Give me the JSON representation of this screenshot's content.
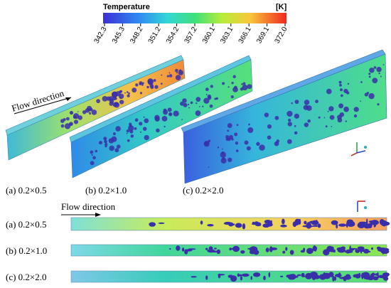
{
  "colorbar": {
    "title": "Temperature",
    "unit": "[K]",
    "ticks": [
      "342.3",
      "345.3",
      "348.2",
      "351.2",
      "354.2",
      "357.2",
      "360.1",
      "363.1",
      "366.1",
      "369.1",
      "372.0"
    ]
  },
  "iso_view": {
    "flow_label": "Flow direction",
    "panels": [
      "(a) 0.2×0.5",
      "(b) 0.2×1.0",
      "(c) 0.2×2.0"
    ]
  },
  "side_view": {
    "flow_label": "Flow direction",
    "panels": [
      "(a) 0.2×0.5",
      "(b) 0.2×1.0",
      "(c) 0.2×2.0"
    ]
  }
}
